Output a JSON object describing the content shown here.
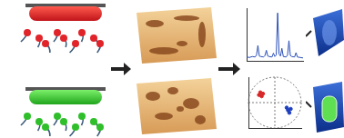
{
  "chart_data": [
    {
      "type": "line",
      "x": [
        0,
        5,
        10,
        15,
        17.5,
        20,
        22.5,
        25,
        30,
        32.5,
        35,
        37.5,
        40,
        45,
        47.5,
        50,
        52.5,
        55,
        57.5,
        60,
        62.5,
        65,
        70,
        72.5,
        75,
        77.5,
        80,
        85,
        87.5,
        90,
        95,
        100
      ],
      "values": [
        8,
        7,
        9,
        8,
        12,
        32,
        10,
        9,
        8,
        11,
        22,
        10,
        9,
        8,
        16,
        9,
        12,
        100,
        14,
        10,
        26,
        9,
        8,
        12,
        42,
        11,
        9,
        8,
        17,
        8,
        7,
        6
      ],
      "color": "#2a4fb8",
      "xlim": [
        0,
        100
      ],
      "ylim": [
        0,
        110
      ],
      "tick_labels": false,
      "grid": false
    },
    {
      "type": "scatter",
      "series": [
        {
          "color": "#d62728",
          "x": [
            -0.6,
            -0.5,
            -0.55,
            -0.45
          ],
          "values": [
            0.3,
            0.25,
            0.4,
            0.35
          ]
        },
        {
          "color": "#1f3fbf",
          "x": [
            0.5,
            0.6,
            0.55,
            0.45
          ],
          "values": [
            -0.3,
            -0.25,
            -0.4,
            -0.2
          ]
        }
      ],
      "xlim": [
        -1,
        1
      ],
      "ylim": [
        -1,
        1
      ],
      "tick_labels": false,
      "grid": false
    }
  ]
}
